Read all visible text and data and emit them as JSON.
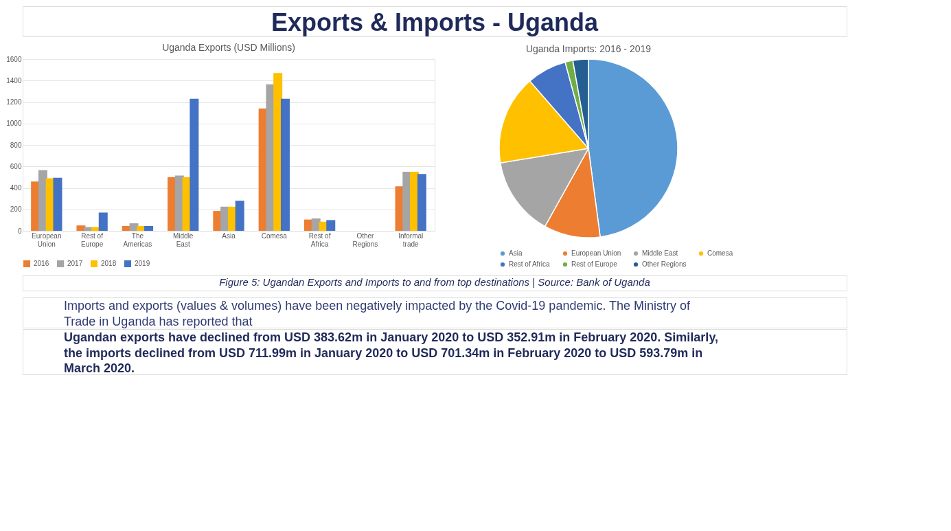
{
  "chart_data": [
    {
      "type": "bar",
      "title": "Uganda Exports (USD Millions)",
      "annotations": [
        "Exports & Imports - Uganda",
        "Figure 5: Ugandan Exports and Imports to and from top destinations | Source: Bank of Uganda",
        "Imports and exports (values & volumes) have been negatively impacted by the Covid-19 pandemic. The Ministry of Trade in Uganda has reported that",
        "Ugandan exports have declined from USD 383.62m in January 2020 to USD 352.91m in February 2020. Similarly, the imports declined from USD 711.99m in January 2020 to USD 701.34m in February 2020 to USD 593.79m in March 2020."
      ],
      "categories": [
        "European Union",
        "Rest of Europe",
        "The Americas",
        "Middle East",
        "Asia",
        "Comesa",
        "Rest of Africa",
        "Other Regions",
        "Informal trade"
      ],
      "series": [
        {
          "name": "2016",
          "color": "#ed7d31",
          "values": [
            460,
            50,
            45,
            500,
            185,
            1140,
            105,
            null,
            415
          ]
        },
        {
          "name": "2017",
          "color": "#a5a5a5",
          "values": [
            565,
            35,
            70,
            515,
            225,
            1365,
            115,
            null,
            550
          ]
        },
        {
          "name": "2018",
          "color": "#ffc000",
          "values": [
            490,
            35,
            45,
            500,
            225,
            1470,
            85,
            null,
            550
          ]
        },
        {
          "name": "2019",
          "color": "#4472c4",
          "values": [
            495,
            170,
            45,
            1230,
            280,
            1230,
            100,
            null,
            530
          ]
        }
      ],
      "ylim": [
        0,
        1600
      ],
      "yticks": [
        0,
        200,
        400,
        600,
        800,
        1000,
        1200,
        1400,
        1600
      ],
      "grid": "y",
      "legend": "bottom"
    },
    {
      "type": "pie",
      "title": "Uganda Imports: 2016 - 2019",
      "categories": [
        "Asia",
        "European Union",
        "Middle East",
        "Comesa",
        "Rest of Africa",
        "Rest of Europe",
        "Other Regions"
      ],
      "values": [
        47.9,
        10.2,
        14.3,
        16.2,
        7.2,
        1.4,
        2.8
      ],
      "colors": [
        "#5b9bd5",
        "#ed7d31",
        "#a5a5a5",
        "#ffc000",
        "#4472c4",
        "#70ad47",
        "#255e91"
      ],
      "legend": "bottom"
    }
  ]
}
